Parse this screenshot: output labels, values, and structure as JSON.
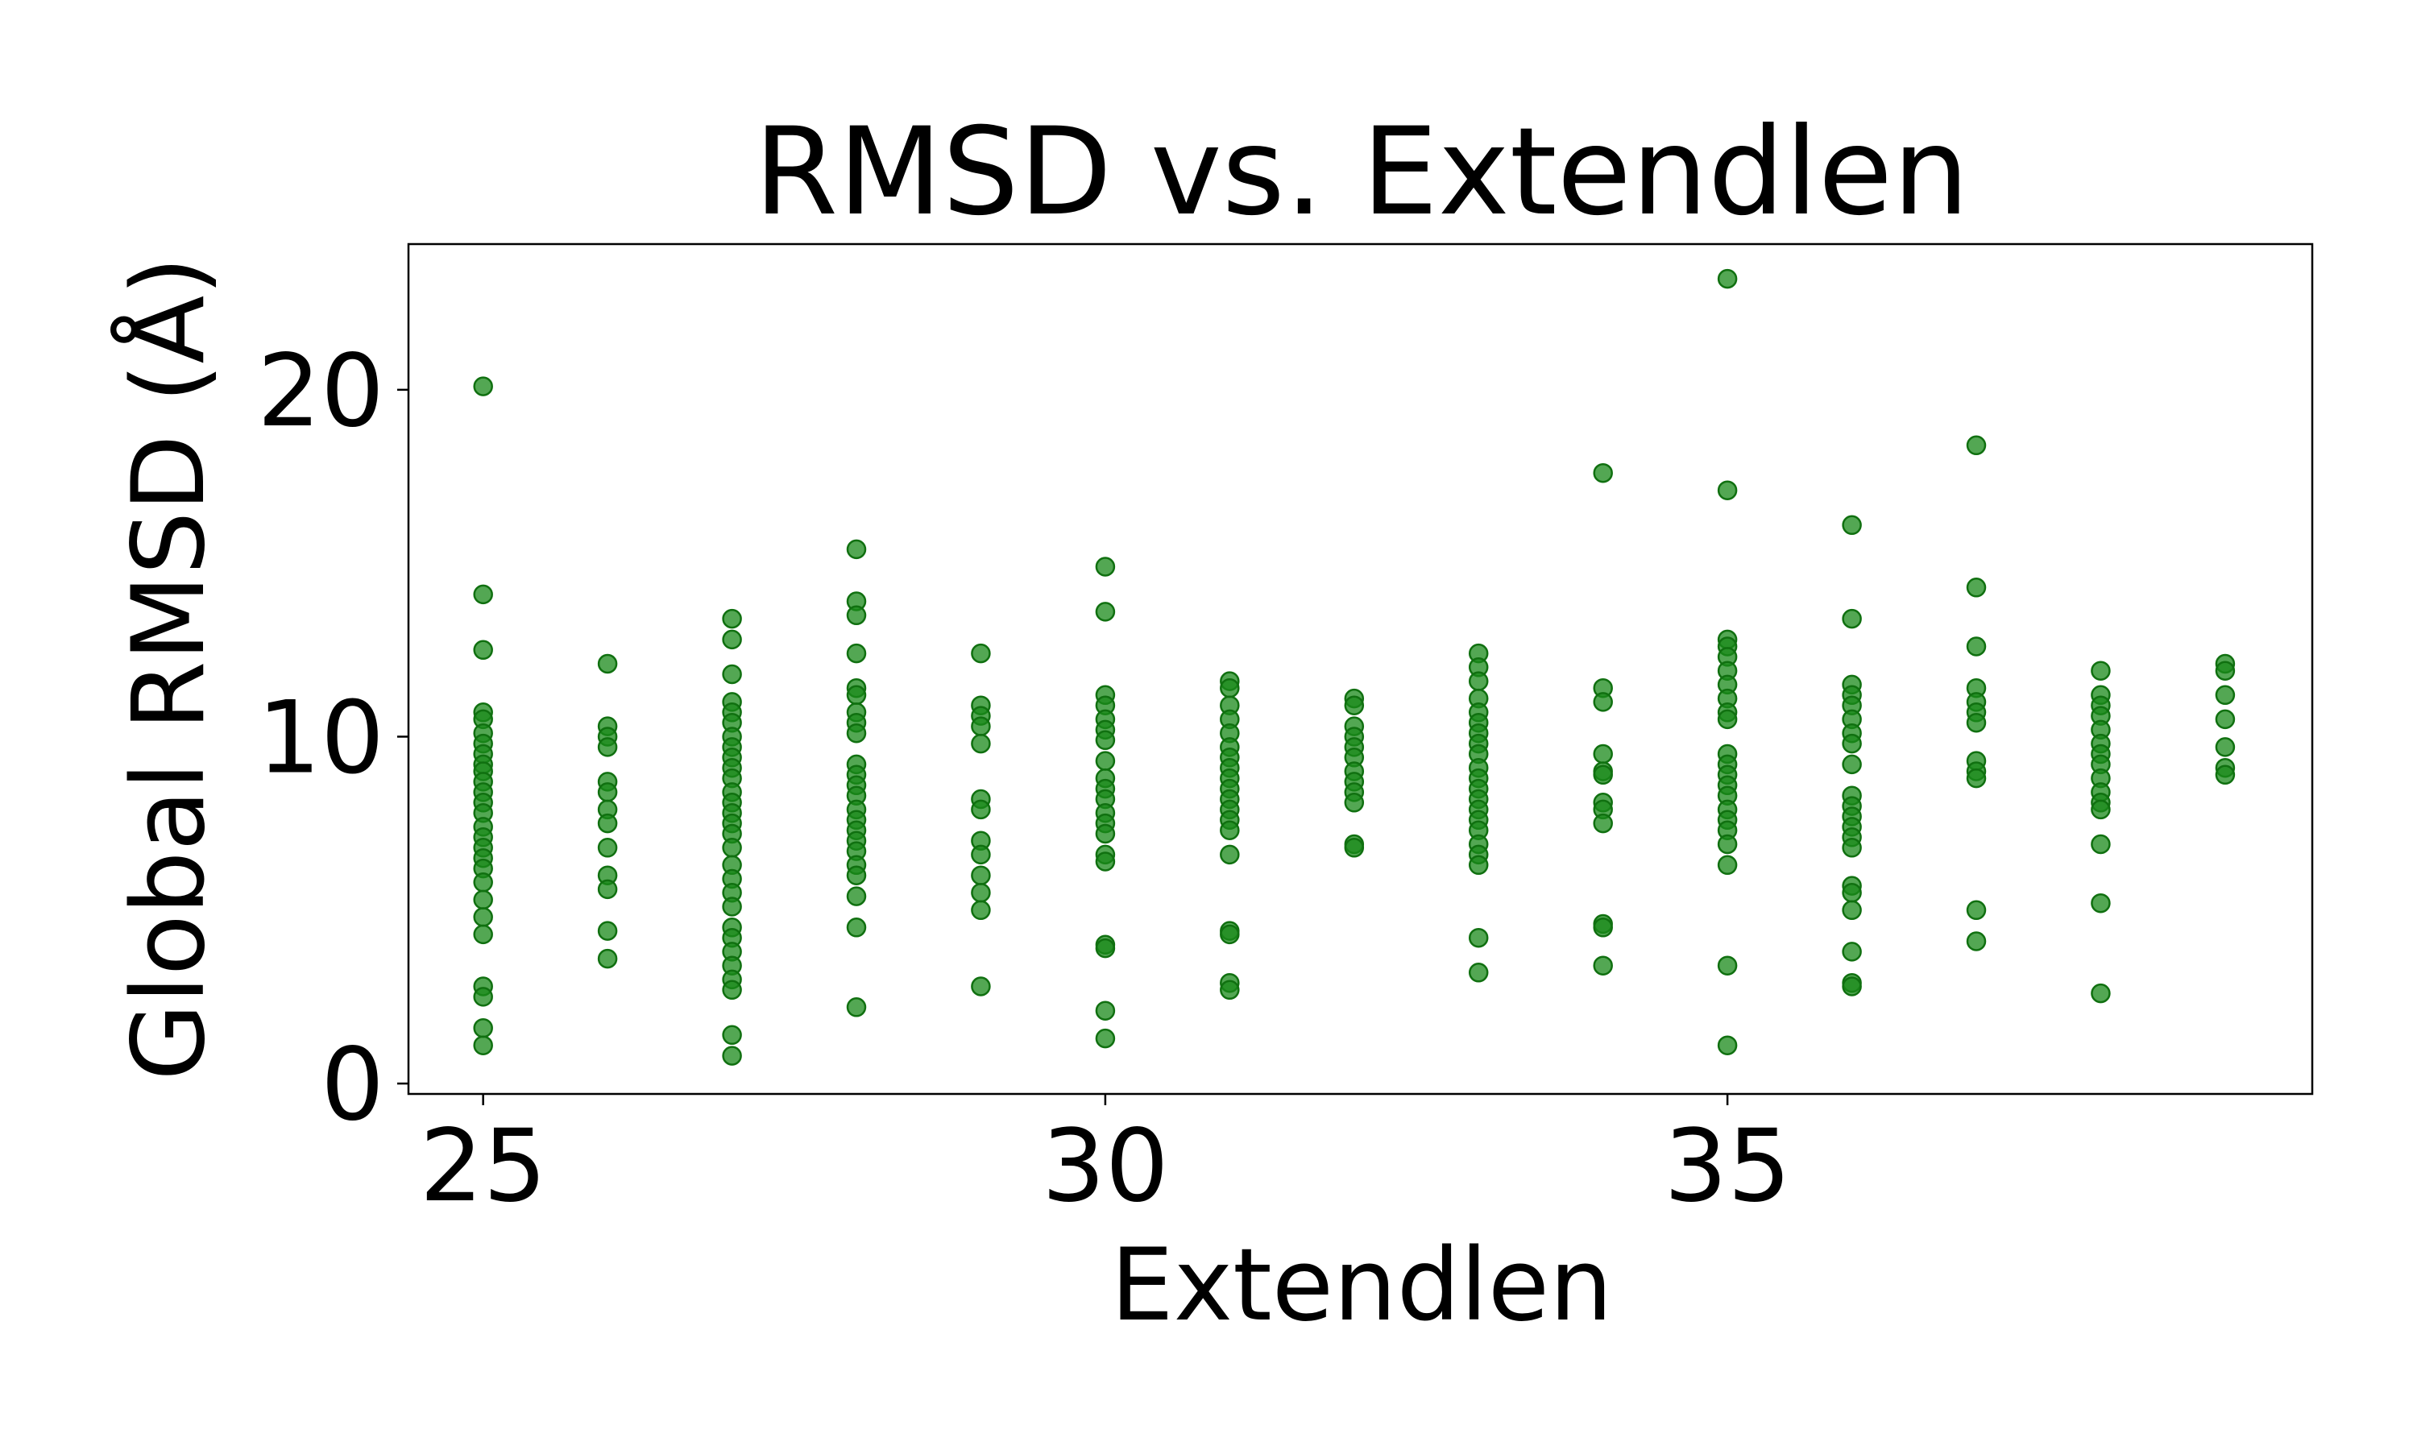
{
  "chart_data": {
    "type": "scatter",
    "title": "RMSD vs. Extendlen",
    "xlabel": "Extendlen",
    "ylabel": "Global RMSD (Å)",
    "xlim": [
      24.4,
      39.7
    ],
    "ylim": [
      -0.3,
      24.2
    ],
    "xticks": [
      25,
      30,
      35
    ],
    "yticks": [
      0,
      10,
      20
    ],
    "grid": false,
    "legend": "none",
    "marker_color": "#1a8a1a",
    "marker_edge_color": "#107010",
    "series": [
      {
        "points": [
          [
            25,
            20.1
          ],
          [
            25,
            14.1
          ],
          [
            25,
            12.5
          ],
          [
            25,
            10.7
          ],
          [
            25,
            10.5
          ],
          [
            25,
            10.1
          ],
          [
            25,
            9.8
          ],
          [
            25,
            9.5
          ],
          [
            25,
            9.2
          ],
          [
            25,
            9.0
          ],
          [
            25,
            8.7
          ],
          [
            25,
            8.4
          ],
          [
            25,
            8.1
          ],
          [
            25,
            7.8
          ],
          [
            25,
            7.4
          ],
          [
            25,
            7.1
          ],
          [
            25,
            6.8
          ],
          [
            25,
            6.5
          ],
          [
            25,
            6.2
          ],
          [
            25,
            5.8
          ],
          [
            25,
            5.3
          ],
          [
            25,
            4.8
          ],
          [
            25,
            4.3
          ],
          [
            25,
            2.8
          ],
          [
            25,
            2.5
          ],
          [
            25,
            1.6
          ],
          [
            25,
            1.1
          ],
          [
            26,
            12.1
          ],
          [
            26,
            10.3
          ],
          [
            26,
            10.0
          ],
          [
            26,
            9.7
          ],
          [
            26,
            8.7
          ],
          [
            26,
            8.4
          ],
          [
            26,
            7.9
          ],
          [
            26,
            7.5
          ],
          [
            26,
            6.8
          ],
          [
            26,
            6.0
          ],
          [
            26,
            5.6
          ],
          [
            26,
            4.4
          ],
          [
            26,
            3.6
          ],
          [
            27,
            13.4
          ],
          [
            27,
            12.8
          ],
          [
            27,
            11.8
          ],
          [
            27,
            11.0
          ],
          [
            27,
            10.7
          ],
          [
            27,
            10.4
          ],
          [
            27,
            10.0
          ],
          [
            27,
            9.7
          ],
          [
            27,
            9.4
          ],
          [
            27,
            9.1
          ],
          [
            27,
            8.8
          ],
          [
            27,
            8.4
          ],
          [
            27,
            8.1
          ],
          [
            27,
            7.8
          ],
          [
            27,
            7.5
          ],
          [
            27,
            7.2
          ],
          [
            27,
            6.8
          ],
          [
            27,
            6.3
          ],
          [
            27,
            5.9
          ],
          [
            27,
            5.5
          ],
          [
            27,
            5.1
          ],
          [
            27,
            4.5
          ],
          [
            27,
            4.2
          ],
          [
            27,
            3.8
          ],
          [
            27,
            3.4
          ],
          [
            27,
            3.0
          ],
          [
            27,
            2.7
          ],
          [
            27,
            1.4
          ],
          [
            27,
            0.8
          ],
          [
            28,
            15.4
          ],
          [
            28,
            13.9
          ],
          [
            28,
            13.5
          ],
          [
            28,
            12.4
          ],
          [
            28,
            11.4
          ],
          [
            28,
            11.2
          ],
          [
            28,
            10.7
          ],
          [
            28,
            10.4
          ],
          [
            28,
            10.1
          ],
          [
            28,
            9.2
          ],
          [
            28,
            8.9
          ],
          [
            28,
            8.6
          ],
          [
            28,
            8.3
          ],
          [
            28,
            7.9
          ],
          [
            28,
            7.6
          ],
          [
            28,
            7.3
          ],
          [
            28,
            7.0
          ],
          [
            28,
            6.7
          ],
          [
            28,
            6.3
          ],
          [
            28,
            6.0
          ],
          [
            28,
            5.4
          ],
          [
            28,
            4.5
          ],
          [
            28,
            2.2
          ],
          [
            29,
            12.4
          ],
          [
            29,
            10.9
          ],
          [
            29,
            10.6
          ],
          [
            29,
            10.3
          ],
          [
            29,
            9.8
          ],
          [
            29,
            8.2
          ],
          [
            29,
            7.9
          ],
          [
            29,
            7.0
          ],
          [
            29,
            6.6
          ],
          [
            29,
            6.0
          ],
          [
            29,
            5.5
          ],
          [
            29,
            5.0
          ],
          [
            29,
            2.8
          ],
          [
            30,
            14.9
          ],
          [
            30,
            13.6
          ],
          [
            30,
            11.2
          ],
          [
            30,
            10.9
          ],
          [
            30,
            10.5
          ],
          [
            30,
            10.2
          ],
          [
            30,
            9.9
          ],
          [
            30,
            9.3
          ],
          [
            30,
            8.8
          ],
          [
            30,
            8.5
          ],
          [
            30,
            8.2
          ],
          [
            30,
            7.8
          ],
          [
            30,
            7.5
          ],
          [
            30,
            7.2
          ],
          [
            30,
            6.6
          ],
          [
            30,
            6.4
          ],
          [
            30,
            4.0
          ],
          [
            30,
            3.9
          ],
          [
            30,
            2.1
          ],
          [
            30,
            1.3
          ],
          [
            31,
            11.6
          ],
          [
            31,
            11.4
          ],
          [
            31,
            10.9
          ],
          [
            31,
            10.5
          ],
          [
            31,
            10.1
          ],
          [
            31,
            9.7
          ],
          [
            31,
            9.4
          ],
          [
            31,
            9.1
          ],
          [
            31,
            8.8
          ],
          [
            31,
            8.5
          ],
          [
            31,
            8.2
          ],
          [
            31,
            7.9
          ],
          [
            31,
            7.6
          ],
          [
            31,
            7.3
          ],
          [
            31,
            6.6
          ],
          [
            31,
            4.4
          ],
          [
            31,
            4.3
          ],
          [
            31,
            2.9
          ],
          [
            31,
            2.7
          ],
          [
            32,
            11.1
          ],
          [
            32,
            10.9
          ],
          [
            32,
            10.3
          ],
          [
            32,
            10.0
          ],
          [
            32,
            9.7
          ],
          [
            32,
            9.4
          ],
          [
            32,
            9.0
          ],
          [
            32,
            8.7
          ],
          [
            32,
            8.4
          ],
          [
            32,
            8.1
          ],
          [
            32,
            6.9
          ],
          [
            32,
            6.8
          ],
          [
            33,
            12.4
          ],
          [
            33,
            12.0
          ],
          [
            33,
            11.6
          ],
          [
            33,
            11.1
          ],
          [
            33,
            10.7
          ],
          [
            33,
            10.4
          ],
          [
            33,
            10.1
          ],
          [
            33,
            9.8
          ],
          [
            33,
            9.5
          ],
          [
            33,
            9.1
          ],
          [
            33,
            8.8
          ],
          [
            33,
            8.5
          ],
          [
            33,
            8.2
          ],
          [
            33,
            7.9
          ],
          [
            33,
            7.6
          ],
          [
            33,
            7.3
          ],
          [
            33,
            6.9
          ],
          [
            33,
            6.6
          ],
          [
            33,
            6.3
          ],
          [
            33,
            4.2
          ],
          [
            33,
            3.2
          ],
          [
            34,
            17.6
          ],
          [
            34,
            11.4
          ],
          [
            34,
            11.0
          ],
          [
            34,
            9.5
          ],
          [
            34,
            9.0
          ],
          [
            34,
            8.9
          ],
          [
            34,
            8.1
          ],
          [
            34,
            7.9
          ],
          [
            34,
            7.5
          ],
          [
            34,
            4.6
          ],
          [
            34,
            4.5
          ],
          [
            34,
            3.4
          ],
          [
            35,
            23.2
          ],
          [
            35,
            17.1
          ],
          [
            35,
            12.8
          ],
          [
            35,
            12.6
          ],
          [
            35,
            12.3
          ],
          [
            35,
            11.9
          ],
          [
            35,
            11.5
          ],
          [
            35,
            11.1
          ],
          [
            35,
            10.7
          ],
          [
            35,
            10.5
          ],
          [
            35,
            9.5
          ],
          [
            35,
            9.2
          ],
          [
            35,
            8.9
          ],
          [
            35,
            8.6
          ],
          [
            35,
            8.3
          ],
          [
            35,
            7.9
          ],
          [
            35,
            7.6
          ],
          [
            35,
            7.3
          ],
          [
            35,
            6.9
          ],
          [
            35,
            6.3
          ],
          [
            35,
            3.4
          ],
          [
            35,
            1.1
          ],
          [
            36,
            16.1
          ],
          [
            36,
            13.4
          ],
          [
            36,
            11.5
          ],
          [
            36,
            11.2
          ],
          [
            36,
            10.9
          ],
          [
            36,
            10.5
          ],
          [
            36,
            10.1
          ],
          [
            36,
            9.8
          ],
          [
            36,
            9.2
          ],
          [
            36,
            8.3
          ],
          [
            36,
            8.0
          ],
          [
            36,
            7.7
          ],
          [
            36,
            7.4
          ],
          [
            36,
            7.1
          ],
          [
            36,
            6.8
          ],
          [
            36,
            5.7
          ],
          [
            36,
            5.5
          ],
          [
            36,
            5.0
          ],
          [
            36,
            3.8
          ],
          [
            36,
            2.9
          ],
          [
            36,
            2.8
          ],
          [
            37,
            18.4
          ],
          [
            37,
            14.3
          ],
          [
            37,
            12.6
          ],
          [
            37,
            11.4
          ],
          [
            37,
            11.0
          ],
          [
            37,
            10.7
          ],
          [
            37,
            10.4
          ],
          [
            37,
            9.3
          ],
          [
            37,
            9.0
          ],
          [
            37,
            8.8
          ],
          [
            37,
            5.0
          ],
          [
            37,
            4.1
          ],
          [
            38,
            11.9
          ],
          [
            38,
            11.2
          ],
          [
            38,
            10.9
          ],
          [
            38,
            10.6
          ],
          [
            38,
            10.2
          ],
          [
            38,
            9.8
          ],
          [
            38,
            9.5
          ],
          [
            38,
            9.2
          ],
          [
            38,
            8.8
          ],
          [
            38,
            8.4
          ],
          [
            38,
            8.1
          ],
          [
            38,
            7.9
          ],
          [
            38,
            6.9
          ],
          [
            38,
            5.2
          ],
          [
            38,
            2.6
          ],
          [
            39,
            12.1
          ],
          [
            39,
            11.9
          ],
          [
            39,
            11.2
          ],
          [
            39,
            10.5
          ],
          [
            39,
            9.7
          ],
          [
            39,
            9.1
          ],
          [
            39,
            8.9
          ]
        ]
      }
    ]
  }
}
